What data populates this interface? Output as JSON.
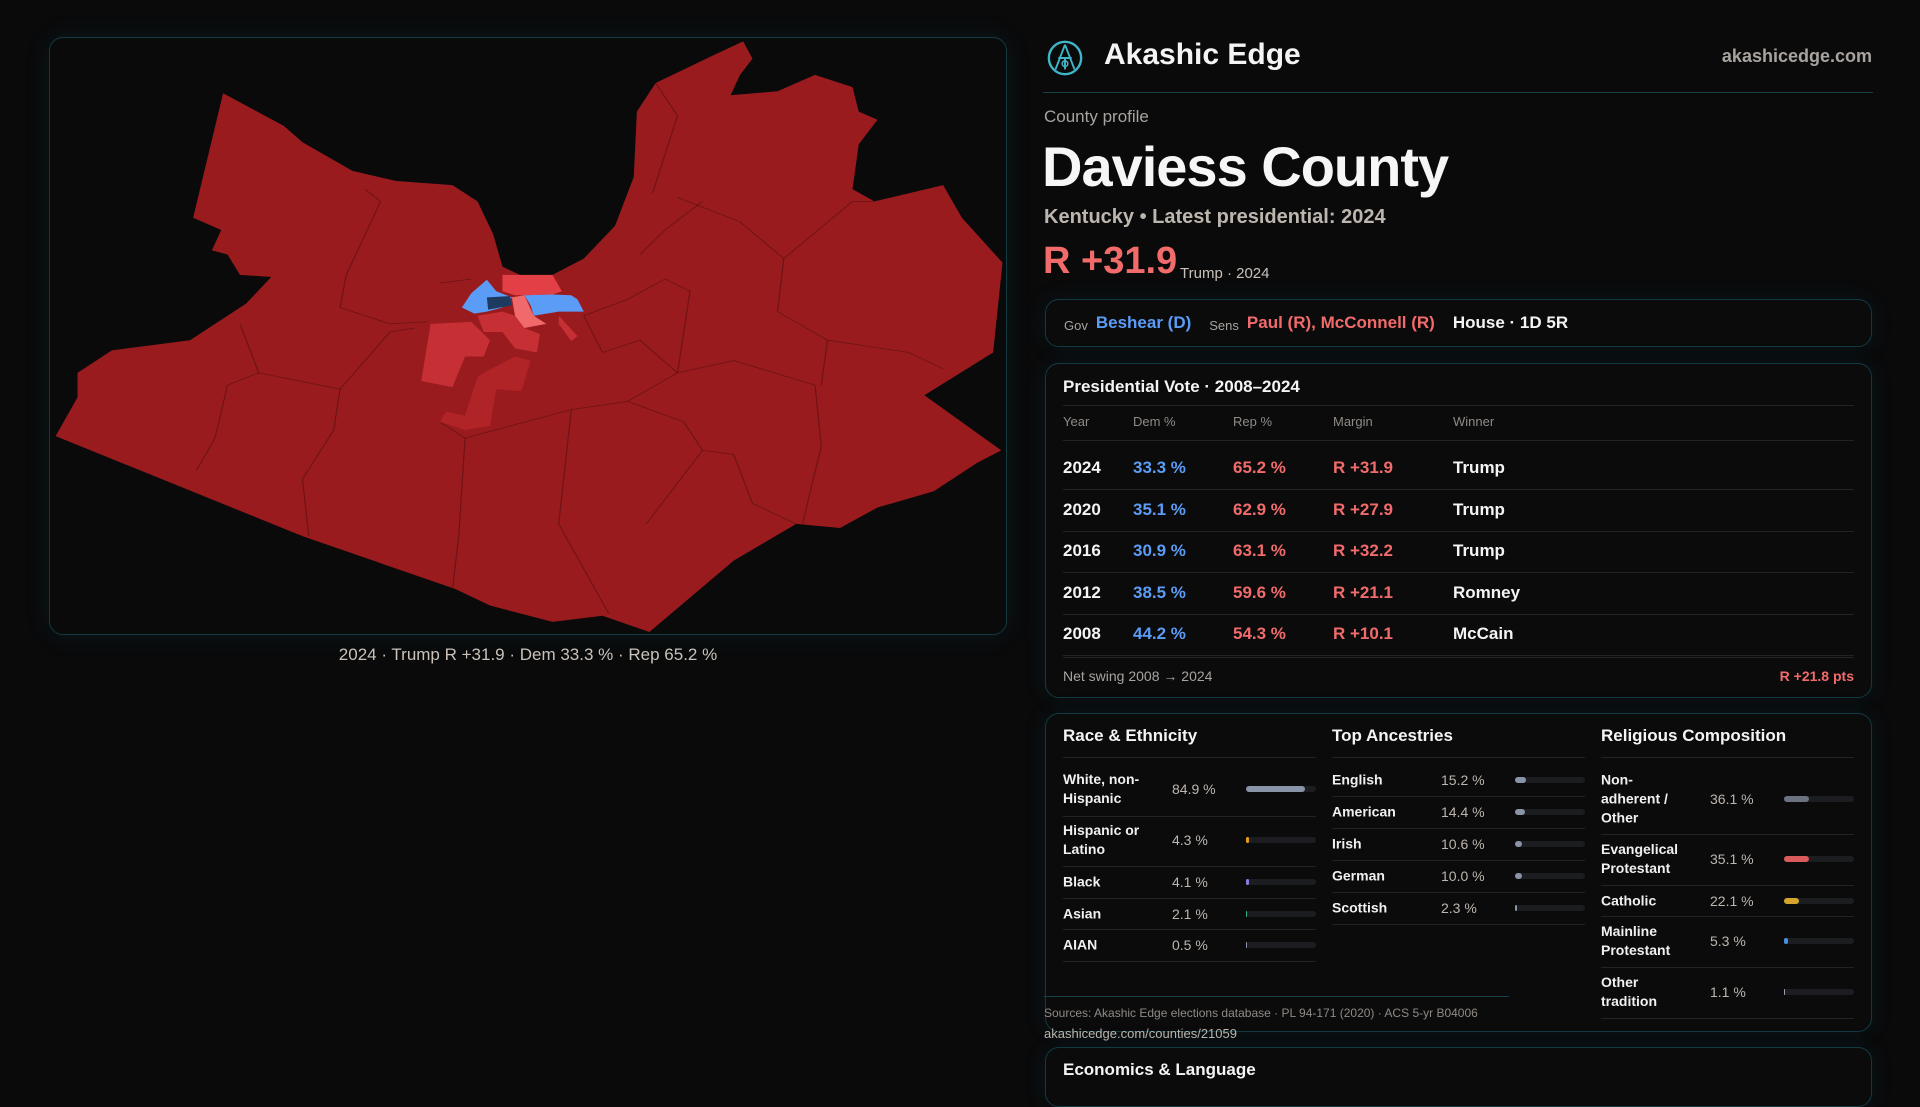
{
  "map": {
    "caption": "2024 · Trump R +31.9 · Dem 33.3 % · Rep 65.2 %",
    "colors": {
      "base": "#9a1b1e",
      "mid": "#c62f33",
      "bright": "#e24046",
      "pink": "#f06a6c",
      "blue": "#5b9cf6",
      "navy": "#1e3a5f"
    }
  },
  "header": {
    "brand": "Akashic Edge",
    "url": "akashicedge.com"
  },
  "profile": {
    "kicker": "County profile",
    "title": "Daviess County",
    "subtitle": "Kentucky • Latest presidential: 2024",
    "margin": "R +31.9",
    "margin_note": "Trump · 2024"
  },
  "officials": {
    "gov_label": "Gov",
    "gov": "Beshear (D)",
    "sens_label": "Sens",
    "sens": "Paul (R), McConnell (R)",
    "house": "House · 1D 5R"
  },
  "presidential": {
    "title": "Presidential Vote · 2008–2024",
    "headers": [
      "Year",
      "Dem %",
      "Rep %",
      "Margin",
      "Winner"
    ],
    "rows": [
      {
        "year": "2024",
        "dem": "33.3 %",
        "rep": "65.2 %",
        "margin": "R +31.9",
        "winner": "Trump"
      },
      {
        "year": "2020",
        "dem": "35.1 %",
        "rep": "62.9 %",
        "margin": "R +27.9",
        "winner": "Trump"
      },
      {
        "year": "2016",
        "dem": "30.9 %",
        "rep": "63.1 %",
        "margin": "R +32.2",
        "winner": "Trump"
      },
      {
        "year": "2012",
        "dem": "38.5 %",
        "rep": "59.6 %",
        "margin": "R +21.1",
        "winner": "Romney"
      },
      {
        "year": "2008",
        "dem": "44.2 %",
        "rep": "54.3 %",
        "margin": "R +10.1",
        "winner": "McCain"
      }
    ],
    "swing_label": "Net swing 2008 → 2024",
    "swing_value": "R +21.8 pts"
  },
  "demographics": {
    "race": {
      "title": "Race & Ethnicity",
      "items": [
        {
          "label": "White, non-Hispanic",
          "value": "84.9 %",
          "pct": 84.9,
          "color": "#8a94a8"
        },
        {
          "label": "Hispanic or Latino",
          "value": "4.3 %",
          "pct": 4.3,
          "color": "#e69a1b"
        },
        {
          "label": "Black",
          "value": "4.1 %",
          "pct": 4.1,
          "color": "#8a7be0"
        },
        {
          "label": "Asian",
          "value": "2.1 %",
          "pct": 2.1,
          "color": "#2fb38a"
        },
        {
          "label": "AIAN",
          "value": "0.5 %",
          "pct": 0.5,
          "color": "#8a94a8"
        }
      ]
    },
    "ancestry": {
      "title": "Top Ancestries",
      "items": [
        {
          "label": "English",
          "value": "15.2 %",
          "pct": 15.2,
          "color": "#8a94a8"
        },
        {
          "label": "American",
          "value": "14.4 %",
          "pct": 14.4,
          "color": "#8a94a8"
        },
        {
          "label": "Irish",
          "value": "10.6 %",
          "pct": 10.6,
          "color": "#8a94a8"
        },
        {
          "label": "German",
          "value": "10.0 %",
          "pct": 10.0,
          "color": "#8a94a8"
        },
        {
          "label": "Scottish",
          "value": "2.3 %",
          "pct": 2.3,
          "color": "#8a94a8"
        }
      ]
    },
    "religion": {
      "title": "Religious Composition",
      "items": [
        {
          "label": "Non-adherent / Other",
          "value": "36.1 %",
          "pct": 36.1,
          "color": "#6b7280"
        },
        {
          "label": "Evangelical Protestant",
          "value": "35.1 %",
          "pct": 35.1,
          "color": "#d95b5b"
        },
        {
          "label": "Catholic",
          "value": "22.1 %",
          "pct": 22.1,
          "color": "#d4a52a"
        },
        {
          "label": "Mainline Protestant",
          "value": "5.3 %",
          "pct": 5.3,
          "color": "#4a8fe0"
        },
        {
          "label": "Other tradition",
          "value": "1.1 %",
          "pct": 1.1,
          "color": "#9ca3af"
        }
      ]
    }
  },
  "sources": {
    "text": "Sources: Akashic Edge elections database · PL 94-171 (2020) · ACS 5-yr B04006",
    "link": "akashicedge.com/counties/21059"
  },
  "economics": {
    "title": "Economics & Language"
  }
}
